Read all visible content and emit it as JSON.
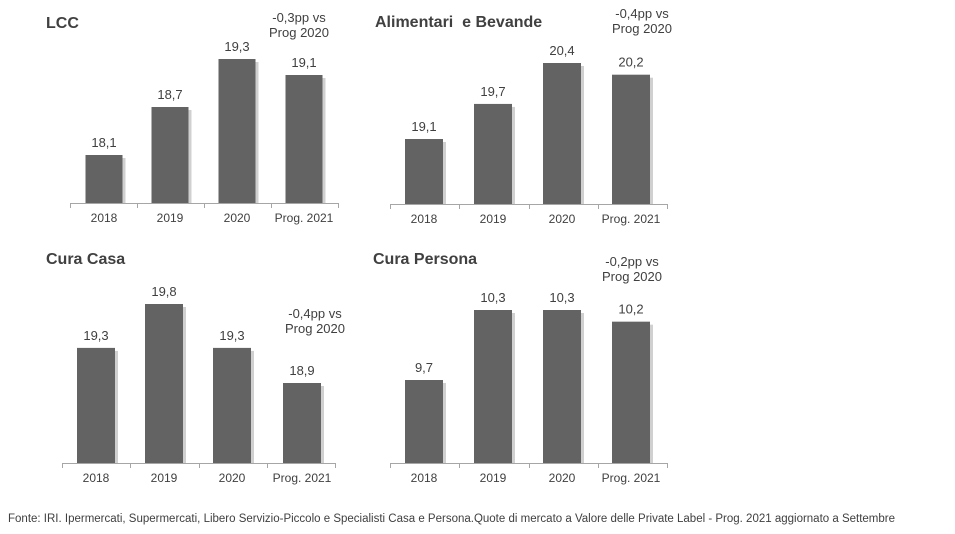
{
  "chart_data": [
    {
      "type": "bar",
      "title": "LCC",
      "categories": [
        "2018",
        "2019",
        "2020",
        "Prog. 2021"
      ],
      "values": [
        18.1,
        18.7,
        19.3,
        19.1
      ],
      "value_labels": [
        "18,1",
        "18,7",
        "19,3",
        "19,1"
      ],
      "annotation": [
        "-0,3pp vs",
        "Prog 2020"
      ],
      "bar_color": "#636363",
      "xlabel": "",
      "ylabel": "",
      "grid": false
    },
    {
      "type": "bar",
      "title": "Alimentari  e Bevande",
      "categories": [
        "2018",
        "2019",
        "2020",
        "Prog. 2021"
      ],
      "values": [
        19.1,
        19.7,
        20.4,
        20.2
      ],
      "value_labels": [
        "19,1",
        "19,7",
        "20,4",
        "20,2"
      ],
      "annotation": [
        "-0,4pp vs",
        "Prog 2020"
      ],
      "bar_color": "#636363",
      "xlabel": "",
      "ylabel": "",
      "grid": false
    },
    {
      "type": "bar",
      "title": "Cura Casa",
      "categories": [
        "2018",
        "2019",
        "2020",
        "Prog. 2021"
      ],
      "values": [
        19.3,
        19.8,
        19.3,
        18.9
      ],
      "value_labels": [
        "19,3",
        "19,8",
        "19,3",
        "18,9"
      ],
      "annotation": [
        "-0,4pp vs",
        "Prog 2020"
      ],
      "bar_color": "#636363",
      "xlabel": "",
      "ylabel": "",
      "grid": false
    },
    {
      "type": "bar",
      "title": "Cura Persona",
      "categories": [
        "2018",
        "2019",
        "2020",
        "Prog. 2021"
      ],
      "values": [
        9.7,
        10.3,
        10.3,
        10.2
      ],
      "value_labels": [
        "9,7",
        "10,3",
        "10,3",
        "10,2"
      ],
      "annotation": [
        "-0,2pp vs",
        "Prog 2020"
      ],
      "bar_color": "#636363",
      "xlabel": "",
      "ylabel": "",
      "grid": false
    }
  ],
  "footer": "Fonte: IRI. Ipermercati, Supermercati, Libero Servizio-Piccolo e Specialisti Casa e Persona.Quote di mercato a Valore delle Private Label - Prog. 2021 aggiornato a Settembre"
}
